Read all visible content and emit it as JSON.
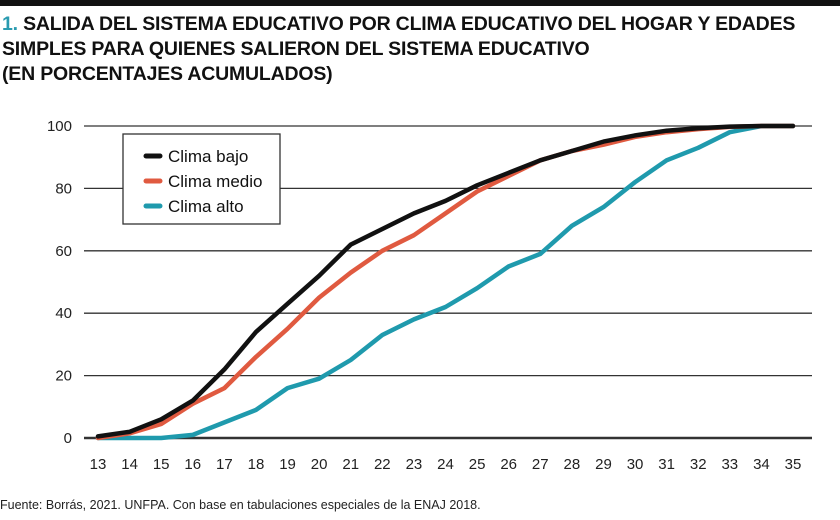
{
  "title_number": "1.",
  "title_lines": [
    "SALIDA DEL SISTEMA EDUCATIVO POR CLIMA EDUCATIVO DEL HOGAR Y EDADES",
    "SIMPLES PARA QUIENES SALIERON DEL SISTEMA EDUCATIVO",
    "(EN PORCENTAJES ACUMULADOS)"
  ],
  "source": "Fuente: Borrás, 2021. UNFPA. Con base en tabulaciones especiales de la ENAJ 2018.",
  "chart_data": {
    "type": "line",
    "title": "SALIDA DEL SISTEMA EDUCATIVO POR CLIMA EDUCATIVO DEL HOGAR Y EDADES SIMPLES PARA QUIENES SALIERON DEL SISTEMA EDUCATIVO (EN PORCENTAJES ACUMULADOS)",
    "xlabel": "",
    "ylabel": "",
    "x": [
      13,
      14,
      15,
      16,
      17,
      18,
      19,
      20,
      21,
      22,
      23,
      24,
      25,
      26,
      27,
      28,
      29,
      30,
      31,
      32,
      33,
      34,
      35
    ],
    "ylim": [
      0,
      100
    ],
    "yticks": [
      0,
      20,
      40,
      60,
      80,
      100
    ],
    "grid": true,
    "legend": "top-left",
    "series": [
      {
        "name": "Clima bajo",
        "color": "#111111",
        "values": [
          0.5,
          2,
          6,
          12,
          22,
          34,
          43,
          52,
          62,
          67,
          72,
          76,
          81,
          85,
          89,
          92,
          95,
          97,
          98.5,
          99.3,
          99.8,
          100,
          100
        ]
      },
      {
        "name": "Clima medio",
        "color": "#e05a40",
        "values": [
          0,
          1.5,
          4.5,
          11,
          16,
          26,
          35,
          45,
          53,
          60,
          65,
          72,
          79,
          84,
          89,
          92,
          94,
          96.5,
          98,
          99,
          99.7,
          100,
          100
        ]
      },
      {
        "name": "Clima alto",
        "color": "#1f9aad",
        "values": [
          0,
          0,
          0,
          1,
          5,
          9,
          16,
          19,
          25,
          33,
          38,
          42,
          48,
          55,
          59,
          68,
          74,
          82,
          89,
          93,
          98,
          100,
          100
        ]
      }
    ]
  }
}
